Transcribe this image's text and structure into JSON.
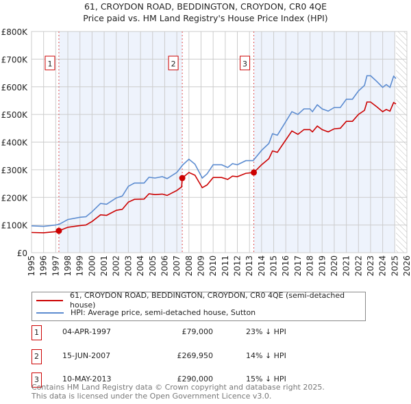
{
  "title": "61, CROYDON ROAD, BEDDINGTON, CROYDON, CR0 4QE",
  "subtitle": "Price paid vs. HM Land Registry's House Price Index (HPI)",
  "chart_data": {
    "type": "line",
    "title": "61, CROYDON ROAD, BEDDINGTON, CROYDON, CR0 4QE",
    "subtitle": "Price paid vs. HM Land Registry's House Price Index (HPI)",
    "xlim": [
      1995,
      2026
    ],
    "ylim": [
      0,
      800000
    ],
    "x_ticks": [
      "1995",
      "1996",
      "1997",
      "1998",
      "1999",
      "2000",
      "2001",
      "2002",
      "2003",
      "2004",
      "2005",
      "2006",
      "2007",
      "2008",
      "2009",
      "2010",
      "2011",
      "2012",
      "2013",
      "2014",
      "2015",
      "2016",
      "2017",
      "2018",
      "2019",
      "2020",
      "2021",
      "2022",
      "2023",
      "2024",
      "2025",
      "2026"
    ],
    "y_ticks": [
      {
        "v": 0,
        "label": "£0"
      },
      {
        "v": 100000,
        "label": "£100K"
      },
      {
        "v": 200000,
        "label": "£200K"
      },
      {
        "v": 300000,
        "label": "£300K"
      },
      {
        "v": 400000,
        "label": "£400K"
      },
      {
        "v": 500000,
        "label": "£500K"
      },
      {
        "v": 600000,
        "label": "£600K"
      },
      {
        "v": 700000,
        "label": "£700K"
      },
      {
        "v": 800000,
        "label": "£800K"
      }
    ],
    "grid": true,
    "shaded_ranges": [
      [
        1997.26,
        2007.45
      ],
      [
        2013.36,
        2025.0
      ]
    ],
    "forecast_hatch_from": 2025.1,
    "series": [
      {
        "name": "61, CROYDON ROAD, BEDDINGTON, CROYDON, CR0 4QE (semi-detached house)",
        "color": "#cc0000",
        "x": [
          1995,
          1996,
          1997,
          1997.26,
          1998,
          1999,
          1999.5,
          2000,
          2000.7,
          2001.2,
          2002,
          2002.5,
          2003,
          2003.5,
          2004.3,
          2004.7,
          2005.2,
          2005.8,
          2006.2,
          2007,
          2007.4,
          2007.45,
          2008,
          2008.5,
          2009.1,
          2009.5,
          2010,
          2010.7,
          2011.2,
          2011.6,
          2012,
          2012.7,
          2013.36,
          2014,
          2014.6,
          2014.9,
          2015.3,
          2015.8,
          2016.5,
          2017,
          2017.5,
          2018,
          2018.2,
          2018.6,
          2019,
          2019.5,
          2020,
          2020.5,
          2021,
          2021.5,
          2022,
          2022.5,
          2022.7,
          2023,
          2023.5,
          2024,
          2024.3,
          2024.6,
          2024.9,
          2025.1
        ],
        "y": [
          73000,
          72000,
          76000,
          79000,
          92000,
          98000,
          100000,
          113000,
          137000,
          135000,
          153000,
          157000,
          183000,
          193000,
          194000,
          213000,
          210000,
          212000,
          207000,
          225000,
          238000,
          269950,
          290000,
          280000,
          235000,
          245000,
          272000,
          272000,
          265000,
          277000,
          275000,
          287000,
          290000,
          318000,
          340000,
          368000,
          363000,
          395000,
          440000,
          428000,
          445000,
          445000,
          437000,
          458000,
          445000,
          437000,
          448000,
          450000,
          475000,
          475000,
          500000,
          515000,
          545000,
          545000,
          528000,
          510000,
          518000,
          512000,
          543000,
          538000
        ]
      },
      {
        "name": "HPI: Average price, semi-detached house, Sutton",
        "color": "#5b8bd0",
        "x": [
          1995,
          1996,
          1997,
          1997.3,
          1998,
          1999,
          1999.5,
          2000,
          2000.7,
          2001.2,
          2002,
          2002.5,
          2003,
          2003.5,
          2004.3,
          2004.7,
          2005.2,
          2005.8,
          2006.2,
          2007,
          2007.5,
          2008,
          2008.5,
          2009.1,
          2009.5,
          2010,
          2010.7,
          2011.2,
          2011.6,
          2012,
          2012.7,
          2013.3,
          2014,
          2014.6,
          2014.9,
          2015.3,
          2015.8,
          2016.5,
          2017,
          2017.5,
          2018,
          2018.2,
          2018.6,
          2019,
          2019.5,
          2020,
          2020.5,
          2021,
          2021.5,
          2022,
          2022.5,
          2022.7,
          2023,
          2023.5,
          2024,
          2024.3,
          2024.6,
          2024.9,
          2025.1
        ],
        "y": [
          97000,
          95000,
          100000,
          103000,
          120000,
          128000,
          130000,
          148000,
          178000,
          175000,
          198000,
          205000,
          240000,
          252000,
          252000,
          273000,
          270000,
          275000,
          268000,
          290000,
          318000,
          338000,
          320000,
          270000,
          285000,
          318000,
          318000,
          308000,
          322000,
          318000,
          333000,
          333000,
          370000,
          395000,
          430000,
          425000,
          460000,
          510000,
          500000,
          520000,
          520000,
          510000,
          535000,
          520000,
          512000,
          525000,
          525000,
          555000,
          555000,
          585000,
          605000,
          640000,
          640000,
          620000,
          598000,
          608000,
          598000,
          638000,
          630000
        ]
      }
    ],
    "sales": [
      {
        "n": "1",
        "x": 1997.26,
        "y": 79000
      },
      {
        "n": "2",
        "x": 2007.45,
        "y": 269950
      },
      {
        "n": "3",
        "x": 2013.36,
        "y": 290000
      }
    ],
    "legend_placement": "below"
  },
  "legend": {
    "red": "61, CROYDON ROAD, BEDDINGTON, CROYDON, CR0 4QE (semi-detached house)",
    "blue": "HPI: Average price, semi-detached house, Sutton"
  },
  "transactions": [
    {
      "n": "1",
      "date": "04-APR-1997",
      "price": "£79,000",
      "hpi": "23% ↓ HPI"
    },
    {
      "n": "2",
      "date": "15-JUN-2007",
      "price": "£269,950",
      "hpi": "14% ↓ HPI"
    },
    {
      "n": "3",
      "date": "10-MAY-2013",
      "price": "£290,000",
      "hpi": "15% ↓ HPI"
    }
  ],
  "footer": [
    "Contains HM Land Registry data © Crown copyright and database right 2025.",
    "This data is licensed under the Open Government Licence v3.0."
  ]
}
